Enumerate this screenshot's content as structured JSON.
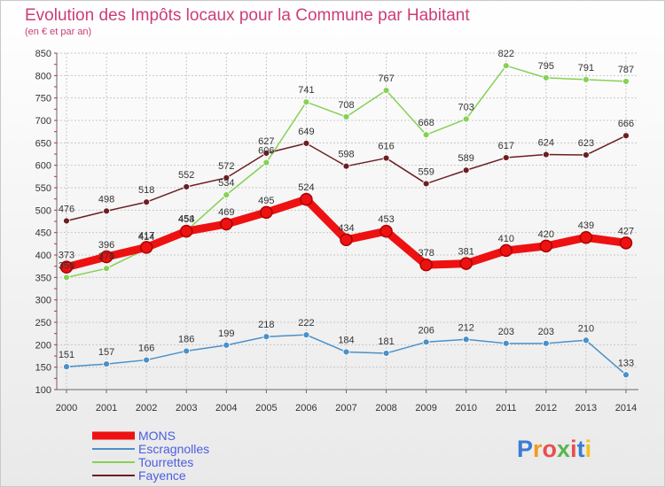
{
  "chart_data": {
    "type": "line",
    "title": "Evolution des Impôts locaux pour la Commune par Habitant",
    "subtitle": "(en € et par an)",
    "x": [
      "2000",
      "2001",
      "2002",
      "2003",
      "2004",
      "2005",
      "2006",
      "2007",
      "2008",
      "2009",
      "2010",
      "2011",
      "2012",
      "2013",
      "2014"
    ],
    "ylim": [
      100,
      850
    ],
    "yticks": [
      100,
      150,
      200,
      250,
      300,
      350,
      400,
      450,
      500,
      550,
      600,
      650,
      700,
      750,
      800,
      850
    ],
    "grid": true,
    "legend_position": "bottom-left",
    "series": [
      {
        "name": "Fayence",
        "color": "#6b1f22",
        "values": [
          476,
          498,
          518,
          552,
          572,
          627,
          649,
          598,
          616,
          559,
          589,
          617,
          624,
          623,
          666
        ]
      },
      {
        "name": "Tourrettes",
        "color": "#86d155",
        "values": [
          350,
          370,
          414,
          454,
          534,
          606,
          741,
          708,
          767,
          668,
          703,
          822,
          795,
          791,
          787
        ]
      },
      {
        "name": "Escragnolles",
        "color": "#4a90c8",
        "values": [
          151,
          157,
          166,
          186,
          199,
          218,
          222,
          184,
          181,
          206,
          212,
          203,
          203,
          210,
          133
        ]
      },
      {
        "name": "MONS",
        "color": "#ee1111",
        "values": [
          373,
          396,
          417,
          453,
          469,
          495,
          524,
          434,
          453,
          378,
          381,
          410,
          420,
          439,
          427
        ]
      }
    ],
    "data_labels": {
      "Fayence": [
        "476",
        "498",
        "518",
        "552",
        "572",
        "627",
        "649",
        "598",
        "616",
        "559",
        "589",
        "617",
        "624",
        "623",
        "666"
      ],
      "Tourrettes": [
        "350",
        "370",
        "414",
        "454",
        "534",
        "606",
        "741",
        "708",
        "767",
        "668",
        "703",
        "822",
        "795",
        "791",
        "787"
      ],
      "Escragnolles": [
        "151",
        "157",
        "166",
        "186",
        "199",
        "218",
        "222",
        "184",
        "181",
        "206",
        "212",
        "203",
        "203",
        "210",
        "133"
      ],
      "MONS": [
        "373",
        "396",
        "417",
        "453",
        "469",
        "495",
        "524",
        "434",
        "453",
        "378",
        "381",
        "410",
        "420",
        "439",
        "427"
      ]
    }
  },
  "legend": [
    "MONS",
    "Escragnolles",
    "Tourrettes",
    "Fayence"
  ],
  "logo": {
    "letters": [
      "P",
      "r",
      "o",
      "x",
      "i",
      "t",
      "i"
    ],
    "colors": [
      "#3a7bd5",
      "#f29a1f",
      "#e94e4e",
      "#5ab552",
      "#e94e4e",
      "#3a7bd5",
      "#f2c21f"
    ]
  }
}
